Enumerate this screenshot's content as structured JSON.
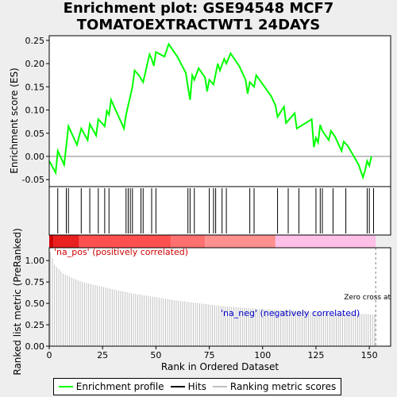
{
  "title_line1": "Enrichment plot: GSE94548 MCF7",
  "title_line2": "TOMATOEXTRACTWT1 24DAYS",
  "colors": {
    "es_line": "#00ff00",
    "hits": "#000000",
    "metric": "#c0c0c0",
    "pos_strong": "#e00000",
    "neg_pink": "#ffc0e8"
  },
  "legend": {
    "enrichment_profile": "Enrichment profile",
    "hits": "Hits",
    "ranking_metric": "Ranking metric scores"
  },
  "chart_data": {
    "type": "line",
    "xlabel": "Rank in Ordered Dataset",
    "x_range": [
      0,
      160
    ],
    "x_ticks": [
      0,
      25,
      50,
      75,
      100,
      125,
      150
    ],
    "es": {
      "ylabel": "Enrichment score (ES)",
      "ylim": [
        -0.065,
        0.26
      ],
      "y_ticks": [
        -0.05,
        0.0,
        0.05,
        0.1,
        0.15,
        0.2,
        0.25
      ],
      "y_tick_labels": [
        "-0.05",
        "0.00",
        "0.05",
        "0.10",
        "0.15",
        "0.20",
        "0.25"
      ],
      "x": [
        0,
        3,
        4,
        7,
        9,
        13,
        15,
        18,
        19,
        22,
        23,
        26,
        27,
        28,
        29,
        35,
        36,
        39,
        40,
        42,
        44,
        47,
        48,
        49,
        50,
        54,
        56,
        60,
        64,
        65,
        66,
        67,
        68,
        70,
        73,
        74,
        75,
        77,
        79,
        80,
        82,
        83,
        85,
        89,
        92,
        93,
        94,
        96,
        97,
        104,
        106,
        107,
        110,
        111,
        115,
        116,
        123,
        124,
        125,
        126,
        127,
        128,
        131,
        132,
        134,
        137,
        138,
        140,
        145,
        147,
        148,
        149,
        150,
        151
      ],
      "y": [
        -0.01,
        -0.035,
        0.012,
        -0.018,
        0.065,
        0.025,
        0.06,
        0.035,
        0.07,
        0.045,
        0.08,
        0.065,
        0.098,
        0.09,
        0.122,
        0.06,
        0.09,
        0.15,
        0.185,
        0.175,
        0.16,
        0.22,
        0.21,
        0.195,
        0.225,
        0.215,
        0.242,
        0.215,
        0.18,
        0.15,
        0.122,
        0.175,
        0.165,
        0.19,
        0.17,
        0.14,
        0.165,
        0.155,
        0.2,
        0.185,
        0.21,
        0.2,
        0.222,
        0.195,
        0.165,
        0.135,
        0.16,
        0.15,
        0.175,
        0.13,
        0.11,
        0.085,
        0.107,
        0.072,
        0.093,
        0.06,
        0.08,
        0.02,
        0.04,
        0.03,
        0.068,
        0.055,
        0.035,
        0.055,
        0.042,
        0.012,
        0.032,
        0.022,
        -0.018,
        -0.045,
        -0.03,
        -0.01,
        -0.02,
        0.0
      ]
    },
    "hits": [
      4,
      8,
      9,
      15,
      19,
      23,
      26,
      28,
      36,
      37,
      38,
      39,
      43,
      44,
      48,
      50,
      65,
      66,
      68,
      75,
      77,
      78,
      81,
      83,
      94,
      96,
      107,
      112,
      117,
      125,
      127,
      128,
      133,
      139,
      149,
      150,
      152
    ],
    "metric": {
      "ylabel": "Ranked list metric (PreRanked)",
      "ylim": [
        0,
        1.15
      ],
      "y_ticks": [
        0,
        0.25,
        0.5,
        0.75,
        1.0
      ],
      "y_tick_labels": [
        "0.00",
        "0.25",
        "0.50",
        "0.75",
        "1.00"
      ],
      "x": [
        0,
        2,
        4,
        6,
        10,
        15,
        20,
        30,
        40,
        50,
        60,
        70,
        80,
        90,
        100,
        110,
        120,
        130,
        140,
        152
      ],
      "y": [
        1.1,
        0.95,
        0.9,
        0.85,
        0.8,
        0.75,
        0.72,
        0.66,
        0.61,
        0.57,
        0.53,
        0.5,
        0.47,
        0.45,
        0.43,
        0.42,
        0.41,
        0.39,
        0.38,
        0.37
      ],
      "zero_cross_label": "Zero cross at",
      "zero_cross_rank": 153
    },
    "annotations": {
      "pos": "'na_pos' (positively correlated)",
      "neg": "'na_neg' (negatively correlated)"
    }
  }
}
